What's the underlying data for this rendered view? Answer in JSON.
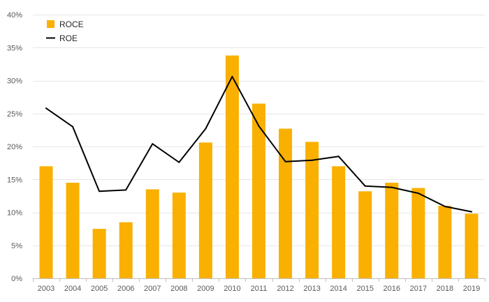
{
  "chart_data": {
    "type": "bar",
    "title": "",
    "xlabel": "",
    "ylabel": "",
    "categories": [
      "2003",
      "2004",
      "2005",
      "2006",
      "2007",
      "2008",
      "2009",
      "2010",
      "2011",
      "2012",
      "2013",
      "2014",
      "2015",
      "2016",
      "2017",
      "2018",
      "2019"
    ],
    "series": [
      {
        "name": "ROCE",
        "type": "bar",
        "color": "#f9b000",
        "values": [
          17.0,
          14.5,
          7.5,
          8.5,
          13.5,
          13.0,
          20.6,
          33.8,
          26.5,
          22.7,
          20.7,
          17.0,
          13.2,
          14.5,
          13.7,
          11.0,
          9.8
        ]
      },
      {
        "name": "ROE",
        "type": "line",
        "color": "#000000",
        "values": [
          25.8,
          23.0,
          13.2,
          13.4,
          20.4,
          17.6,
          22.7,
          30.6,
          23.1,
          17.7,
          17.9,
          18.5,
          14.0,
          13.8,
          12.9,
          10.9,
          10.1
        ]
      }
    ],
    "ylim": [
      0,
      40
    ],
    "yticks": [
      0,
      5,
      10,
      15,
      20,
      25,
      30,
      35,
      40
    ],
    "ytick_labels": [
      "0%",
      "5%",
      "10%",
      "15%",
      "20%",
      "25%",
      "30%",
      "35%",
      "40%"
    ],
    "grid": true,
    "legend": {
      "position": "top-left",
      "entries": [
        "ROCE",
        "ROE"
      ]
    }
  }
}
